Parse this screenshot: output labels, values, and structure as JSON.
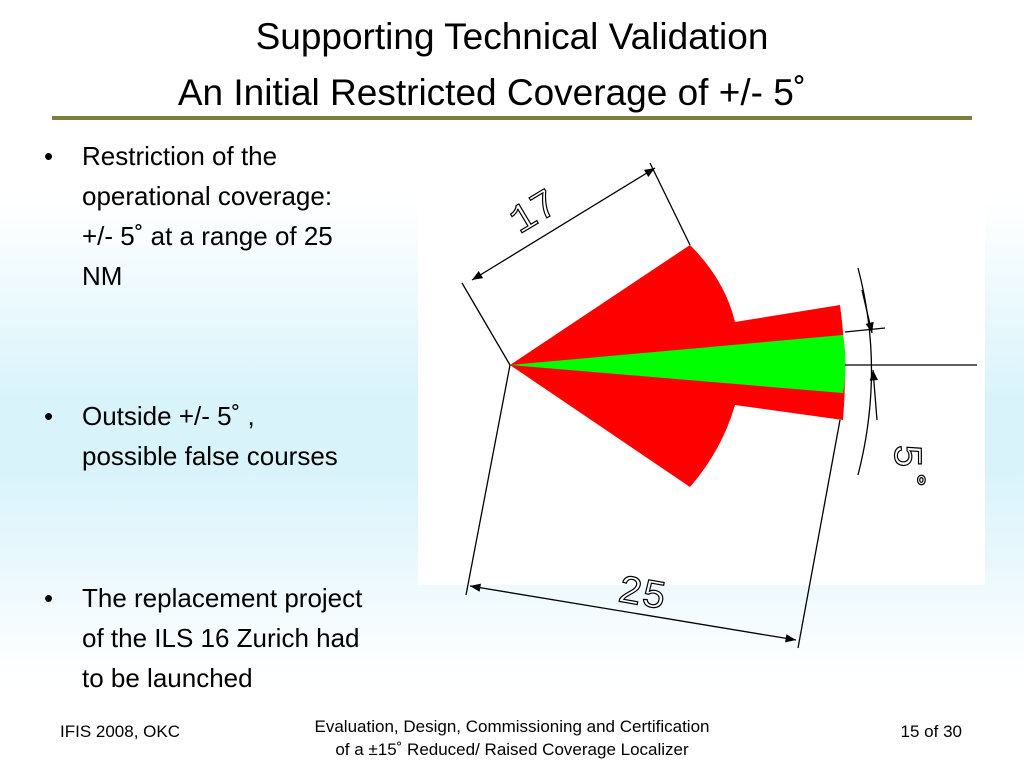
{
  "header": {
    "title_lines": [
      "Supporting Technical Validation",
      "An Initial Restricted Coverage of +/- 5˚"
    ]
  },
  "bullets": [
    "Restriction of the operational coverage: +/- 5˚ at a range of 25 NM",
    "Outside +/- 5˚ , possible false courses",
    "The replacement project of the ILS 16 Zurich had to be launched"
  ],
  "diagram": {
    "labels": [
      "17",
      "5˚",
      "25"
    ]
  },
  "footer": {
    "left": "IFIS 2008, OKC",
    "center_lines": [
      "Evaluation, Design, Commissioning and Certification",
      "of a ±15˚ Reduced/ Raised Coverage Localizer"
    ],
    "right": "15 of 30"
  }
}
